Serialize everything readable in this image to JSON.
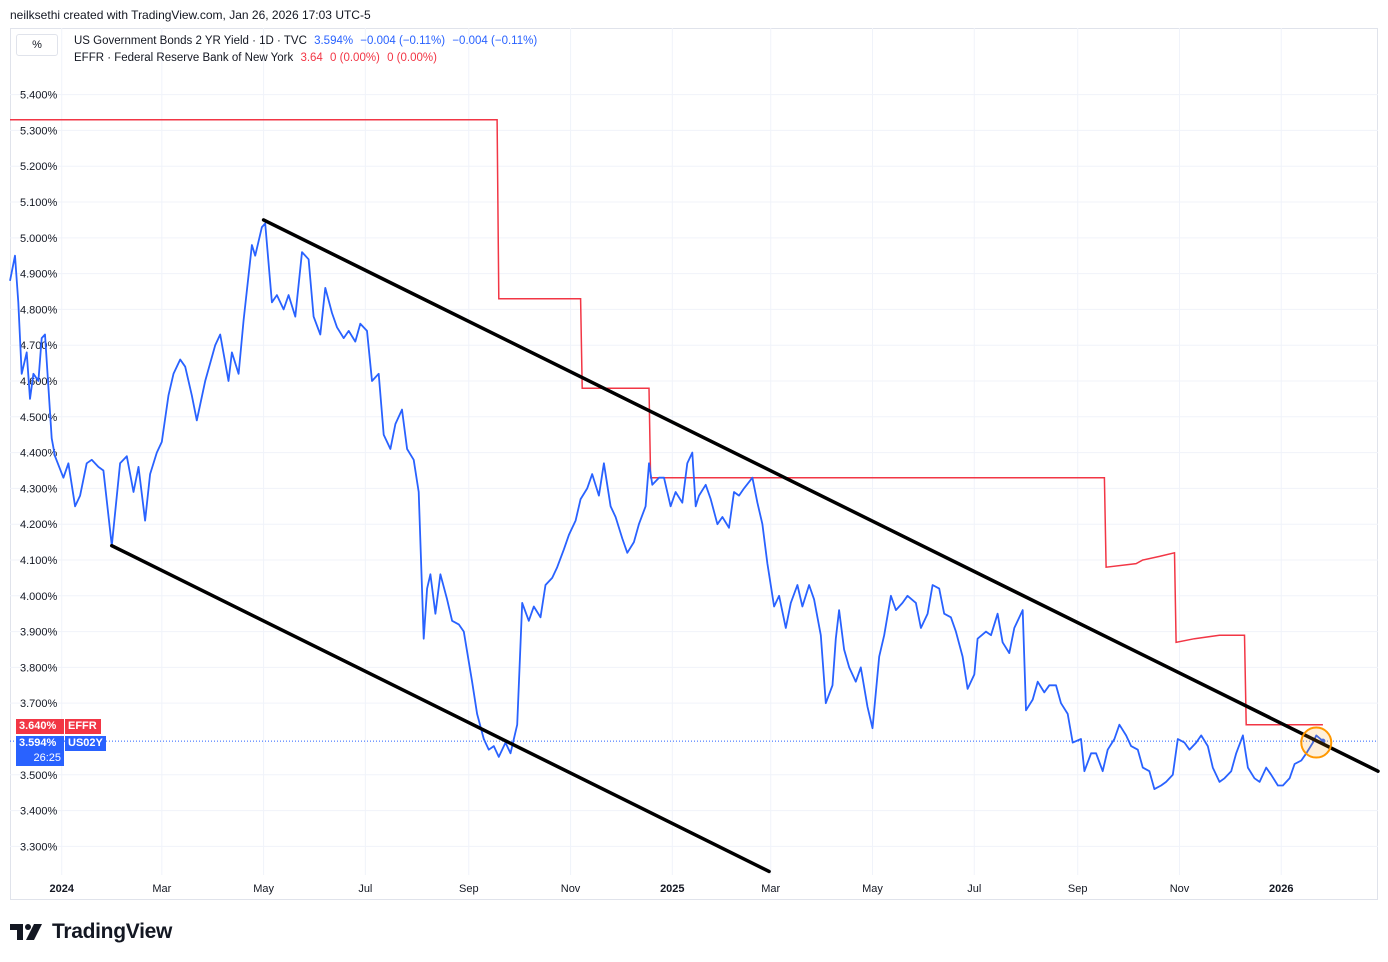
{
  "header": {
    "creator_text": "neilksethi created with TradingView.com, Jan 26, 2026 17:03 UTC-5"
  },
  "unit_label": "%",
  "legend": {
    "series1": {
      "name": "US Government Bonds 2 YR Yield · 1D · TVC",
      "value": "3.594%",
      "change1": "−0.004 (−0.11%)",
      "change2": "−0.004 (−0.11%)"
    },
    "series2": {
      "name": "EFFR · Federal Reserve Bank of New York",
      "value": "3.64",
      "change1": "0 (0.00%)",
      "change2": "0 (0.00%)"
    }
  },
  "price_tags": {
    "effr_value": "3.640%",
    "effr_label": "EFFR",
    "us02y_value": "3.594%",
    "us02y_label": "US02Y",
    "countdown": "26:25"
  },
  "brand": {
    "name": "TradingView"
  },
  "colors": {
    "us02y": "#2962ff",
    "effr": "#f23645",
    "trendline": "#000000",
    "highlight": "#ff9800"
  },
  "chart_data": {
    "type": "line",
    "x_unit": "date",
    "x_range": [
      "2023-12-01",
      "2026-02-28"
    ],
    "ylim": [
      3.22,
      5.48
    ],
    "y_ticks": [
      "5.400%",
      "5.300%",
      "5.200%",
      "5.100%",
      "5.000%",
      "4.900%",
      "4.800%",
      "4.700%",
      "4.600%",
      "4.500%",
      "4.400%",
      "4.300%",
      "4.200%",
      "4.100%",
      "4.000%",
      "3.900%",
      "3.800%",
      "3.700%",
      "3.500%",
      "3.400%",
      "3.300%"
    ],
    "x_ticks": [
      {
        "label": "2024",
        "date": "2024-01-01"
      },
      {
        "label": "Mar",
        "date": "2024-03-01"
      },
      {
        "label": "May",
        "date": "2024-05-01"
      },
      {
        "label": "Jul",
        "date": "2024-07-01"
      },
      {
        "label": "Sep",
        "date": "2024-09-01"
      },
      {
        "label": "Nov",
        "date": "2024-11-01"
      },
      {
        "label": "2025",
        "date": "2025-01-01"
      },
      {
        "label": "Mar",
        "date": "2025-03-01"
      },
      {
        "label": "May",
        "date": "2025-05-01"
      },
      {
        "label": "Jul",
        "date": "2025-07-01"
      },
      {
        "label": "Sep",
        "date": "2025-09-01"
      },
      {
        "label": "Nov",
        "date": "2025-11-01"
      },
      {
        "label": "2026",
        "date": "2026-01-01"
      }
    ],
    "grid": true,
    "series": [
      {
        "name": "US Government Bonds 2 YR Yield",
        "points": [
          [
            "2023-12-01",
            4.88
          ],
          [
            "2023-12-04",
            4.95
          ],
          [
            "2023-12-06",
            4.82
          ],
          [
            "2023-12-08",
            4.62
          ],
          [
            "2023-12-11",
            4.68
          ],
          [
            "2023-12-13",
            4.55
          ],
          [
            "2023-12-15",
            4.62
          ],
          [
            "2023-12-18",
            4.6
          ],
          [
            "2023-12-20",
            4.72
          ],
          [
            "2023-12-22",
            4.73
          ],
          [
            "2023-12-26",
            4.44
          ],
          [
            "2023-12-28",
            4.39
          ],
          [
            "2024-01-02",
            4.33
          ],
          [
            "2024-01-05",
            4.37
          ],
          [
            "2024-01-09",
            4.25
          ],
          [
            "2024-01-12",
            4.28
          ],
          [
            "2024-01-16",
            4.37
          ],
          [
            "2024-01-19",
            4.38
          ],
          [
            "2024-01-23",
            4.36
          ],
          [
            "2024-01-26",
            4.35
          ],
          [
            "2024-01-31",
            4.14
          ],
          [
            "2024-02-05",
            4.37
          ],
          [
            "2024-02-09",
            4.39
          ],
          [
            "2024-02-13",
            4.29
          ],
          [
            "2024-02-16",
            4.36
          ],
          [
            "2024-02-20",
            4.21
          ],
          [
            "2024-02-23",
            4.34
          ],
          [
            "2024-02-27",
            4.4
          ],
          [
            "2024-03-01",
            4.43
          ],
          [
            "2024-03-05",
            4.56
          ],
          [
            "2024-03-08",
            4.62
          ],
          [
            "2024-03-12",
            4.66
          ],
          [
            "2024-03-15",
            4.64
          ],
          [
            "2024-03-19",
            4.56
          ],
          [
            "2024-03-22",
            4.49
          ],
          [
            "2024-03-27",
            4.6
          ],
          [
            "2024-04-02",
            4.7
          ],
          [
            "2024-04-05",
            4.73
          ],
          [
            "2024-04-10",
            4.6
          ],
          [
            "2024-04-12",
            4.68
          ],
          [
            "2024-04-16",
            4.62
          ],
          [
            "2024-04-19",
            4.77
          ],
          [
            "2024-04-24",
            4.98
          ],
          [
            "2024-04-26",
            4.95
          ],
          [
            "2024-04-30",
            5.03
          ],
          [
            "2024-05-02",
            5.04
          ],
          [
            "2024-05-06",
            4.82
          ],
          [
            "2024-05-09",
            4.84
          ],
          [
            "2024-05-13",
            4.8
          ],
          [
            "2024-05-16",
            4.84
          ],
          [
            "2024-05-20",
            4.78
          ],
          [
            "2024-05-24",
            4.96
          ],
          [
            "2024-05-28",
            4.94
          ],
          [
            "2024-05-31",
            4.78
          ],
          [
            "2024-06-04",
            4.73
          ],
          [
            "2024-06-07",
            4.86
          ],
          [
            "2024-06-11",
            4.79
          ],
          [
            "2024-06-14",
            4.75
          ],
          [
            "2024-06-18",
            4.72
          ],
          [
            "2024-06-21",
            4.74
          ],
          [
            "2024-06-25",
            4.71
          ],
          [
            "2024-06-28",
            4.76
          ],
          [
            "2024-07-02",
            4.74
          ],
          [
            "2024-07-05",
            4.6
          ],
          [
            "2024-07-09",
            4.62
          ],
          [
            "2024-07-12",
            4.45
          ],
          [
            "2024-07-16",
            4.41
          ],
          [
            "2024-07-19",
            4.48
          ],
          [
            "2024-07-23",
            4.52
          ],
          [
            "2024-07-26",
            4.41
          ],
          [
            "2024-07-30",
            4.38
          ],
          [
            "2024-08-02",
            4.29
          ],
          [
            "2024-08-05",
            3.88
          ],
          [
            "2024-08-07",
            4.02
          ],
          [
            "2024-08-09",
            4.06
          ],
          [
            "2024-08-12",
            3.95
          ],
          [
            "2024-08-15",
            4.06
          ],
          [
            "2024-08-19",
            3.99
          ],
          [
            "2024-08-22",
            3.93
          ],
          [
            "2024-08-26",
            3.92
          ],
          [
            "2024-08-29",
            3.9
          ],
          [
            "2024-09-03",
            3.76
          ],
          [
            "2024-09-06",
            3.67
          ],
          [
            "2024-09-10",
            3.6
          ],
          [
            "2024-09-13",
            3.57
          ],
          [
            "2024-09-16",
            3.58
          ],
          [
            "2024-09-19",
            3.55
          ],
          [
            "2024-09-23",
            3.59
          ],
          [
            "2024-09-26",
            3.56
          ],
          [
            "2024-09-30",
            3.64
          ],
          [
            "2024-10-03",
            3.98
          ],
          [
            "2024-10-07",
            3.93
          ],
          [
            "2024-10-10",
            3.97
          ],
          [
            "2024-10-14",
            3.94
          ],
          [
            "2024-10-17",
            4.03
          ],
          [
            "2024-10-21",
            4.05
          ],
          [
            "2024-10-24",
            4.08
          ],
          [
            "2024-10-28",
            4.13
          ],
          [
            "2024-10-31",
            4.17
          ],
          [
            "2024-11-04",
            4.21
          ],
          [
            "2024-11-07",
            4.27
          ],
          [
            "2024-11-11",
            4.3
          ],
          [
            "2024-11-14",
            4.34
          ],
          [
            "2024-11-18",
            4.28
          ],
          [
            "2024-11-21",
            4.37
          ],
          [
            "2024-11-25",
            4.25
          ],
          [
            "2024-11-28",
            4.22
          ],
          [
            "2024-12-02",
            4.16
          ],
          [
            "2024-12-05",
            4.12
          ],
          [
            "2024-12-09",
            4.15
          ],
          [
            "2024-12-12",
            4.2
          ],
          [
            "2024-12-16",
            4.25
          ],
          [
            "2024-12-18",
            4.37
          ],
          [
            "2024-12-20",
            4.31
          ],
          [
            "2024-12-24",
            4.33
          ],
          [
            "2024-12-27",
            4.33
          ],
          [
            "2024-12-31",
            4.25
          ],
          [
            "2025-01-03",
            4.29
          ],
          [
            "2025-01-07",
            4.26
          ],
          [
            "2025-01-10",
            4.37
          ],
          [
            "2025-01-13",
            4.4
          ],
          [
            "2025-01-15",
            4.25
          ],
          [
            "2025-01-17",
            4.28
          ],
          [
            "2025-01-21",
            4.31
          ],
          [
            "2025-01-24",
            4.27
          ],
          [
            "2025-01-28",
            4.2
          ],
          [
            "2025-01-31",
            4.22
          ],
          [
            "2025-02-04",
            4.19
          ],
          [
            "2025-02-07",
            4.29
          ],
          [
            "2025-02-10",
            4.28
          ],
          [
            "2025-02-13",
            4.3
          ],
          [
            "2025-02-18",
            4.33
          ],
          [
            "2025-02-21",
            4.26
          ],
          [
            "2025-02-24",
            4.2
          ],
          [
            "2025-02-27",
            4.09
          ],
          [
            "2025-03-03",
            3.97
          ],
          [
            "2025-03-06",
            4.0
          ],
          [
            "2025-03-10",
            3.91
          ],
          [
            "2025-03-13",
            3.98
          ],
          [
            "2025-03-17",
            4.03
          ],
          [
            "2025-03-20",
            3.97
          ],
          [
            "2025-03-24",
            4.03
          ],
          [
            "2025-03-27",
            3.99
          ],
          [
            "2025-03-31",
            3.89
          ],
          [
            "2025-04-03",
            3.7
          ],
          [
            "2025-04-07",
            3.75
          ],
          [
            "2025-04-09",
            3.88
          ],
          [
            "2025-04-11",
            3.96
          ],
          [
            "2025-04-14",
            3.85
          ],
          [
            "2025-04-17",
            3.8
          ],
          [
            "2025-04-21",
            3.76
          ],
          [
            "2025-04-24",
            3.8
          ],
          [
            "2025-04-28",
            3.69
          ],
          [
            "2025-05-01",
            3.63
          ],
          [
            "2025-05-05",
            3.83
          ],
          [
            "2025-05-08",
            3.89
          ],
          [
            "2025-05-12",
            4.0
          ],
          [
            "2025-05-15",
            3.96
          ],
          [
            "2025-05-19",
            3.98
          ],
          [
            "2025-05-22",
            4.0
          ],
          [
            "2025-05-27",
            3.98
          ],
          [
            "2025-05-30",
            3.91
          ],
          [
            "2025-06-03",
            3.95
          ],
          [
            "2025-06-06",
            4.03
          ],
          [
            "2025-06-10",
            4.02
          ],
          [
            "2025-06-13",
            3.95
          ],
          [
            "2025-06-17",
            3.94
          ],
          [
            "2025-06-20",
            3.9
          ],
          [
            "2025-06-24",
            3.83
          ],
          [
            "2025-06-27",
            3.74
          ],
          [
            "2025-07-01",
            3.78
          ],
          [
            "2025-07-03",
            3.88
          ],
          [
            "2025-07-08",
            3.9
          ],
          [
            "2025-07-11",
            3.89
          ],
          [
            "2025-07-15",
            3.95
          ],
          [
            "2025-07-18",
            3.87
          ],
          [
            "2025-07-22",
            3.84
          ],
          [
            "2025-07-25",
            3.91
          ],
          [
            "2025-07-30",
            3.96
          ],
          [
            "2025-08-01",
            3.68
          ],
          [
            "2025-08-05",
            3.71
          ],
          [
            "2025-08-08",
            3.76
          ],
          [
            "2025-08-12",
            3.73
          ],
          [
            "2025-08-15",
            3.75
          ],
          [
            "2025-08-19",
            3.75
          ],
          [
            "2025-08-22",
            3.7
          ],
          [
            "2025-08-26",
            3.67
          ],
          [
            "2025-08-29",
            3.59
          ],
          [
            "2025-09-03",
            3.6
          ],
          [
            "2025-09-05",
            3.51
          ],
          [
            "2025-09-09",
            3.56
          ],
          [
            "2025-09-12",
            3.56
          ],
          [
            "2025-09-16",
            3.51
          ],
          [
            "2025-09-19",
            3.57
          ],
          [
            "2025-09-23",
            3.6
          ],
          [
            "2025-09-26",
            3.64
          ],
          [
            "2025-09-30",
            3.61
          ],
          [
            "2025-10-03",
            3.58
          ],
          [
            "2025-10-07",
            3.57
          ],
          [
            "2025-10-10",
            3.52
          ],
          [
            "2025-10-14",
            3.51
          ],
          [
            "2025-10-17",
            3.46
          ],
          [
            "2025-10-21",
            3.47
          ],
          [
            "2025-10-24",
            3.48
          ],
          [
            "2025-10-28",
            3.5
          ],
          [
            "2025-10-31",
            3.6
          ],
          [
            "2025-11-04",
            3.59
          ],
          [
            "2025-11-07",
            3.57
          ],
          [
            "2025-11-11",
            3.59
          ],
          [
            "2025-11-14",
            3.61
          ],
          [
            "2025-11-18",
            3.58
          ],
          [
            "2025-11-21",
            3.52
          ],
          [
            "2025-11-25",
            3.48
          ],
          [
            "2025-11-28",
            3.49
          ],
          [
            "2025-12-02",
            3.51
          ],
          [
            "2025-12-05",
            3.56
          ],
          [
            "2025-12-09",
            3.61
          ],
          [
            "2025-12-12",
            3.52
          ],
          [
            "2025-12-16",
            3.49
          ],
          [
            "2025-12-19",
            3.48
          ],
          [
            "2025-12-23",
            3.52
          ],
          [
            "2025-12-26",
            3.5
          ],
          [
            "2025-12-30",
            3.47
          ],
          [
            "2026-01-02",
            3.47
          ],
          [
            "2026-01-06",
            3.49
          ],
          [
            "2026-01-09",
            3.53
          ],
          [
            "2026-01-13",
            3.54
          ],
          [
            "2026-01-16",
            3.56
          ],
          [
            "2026-01-20",
            3.59
          ],
          [
            "2026-01-22",
            3.61
          ],
          [
            "2026-01-26",
            3.594
          ]
        ]
      },
      {
        "name": "EFFR",
        "points": [
          [
            "2023-12-01",
            5.33
          ],
          [
            "2024-09-18",
            5.33
          ],
          [
            "2024-09-19",
            4.83
          ],
          [
            "2024-11-07",
            4.83
          ],
          [
            "2024-11-08",
            4.58
          ],
          [
            "2024-12-18",
            4.58
          ],
          [
            "2024-12-19",
            4.33
          ],
          [
            "2025-09-17",
            4.33
          ],
          [
            "2025-09-18",
            4.08
          ],
          [
            "2025-10-06",
            4.09
          ],
          [
            "2025-10-10",
            4.1
          ],
          [
            "2025-10-20",
            4.11
          ],
          [
            "2025-10-29",
            4.12
          ],
          [
            "2025-10-30",
            3.87
          ],
          [
            "2025-11-10",
            3.88
          ],
          [
            "2025-11-25",
            3.89
          ],
          [
            "2025-12-10",
            3.89
          ],
          [
            "2025-12-11",
            3.64
          ],
          [
            "2026-01-26",
            3.64
          ]
        ]
      }
    ],
    "annotations": [
      {
        "type": "trendline",
        "from": [
          "2024-05-01",
          5.05
        ],
        "to": [
          "2026-02-28",
          3.51
        ]
      },
      {
        "type": "trendline",
        "from": [
          "2024-01-31",
          4.14
        ],
        "to": [
          "2025-02-28",
          3.23
        ]
      },
      {
        "type": "highlight-circle",
        "at": [
          "2026-01-22",
          3.59
        ]
      }
    ]
  }
}
